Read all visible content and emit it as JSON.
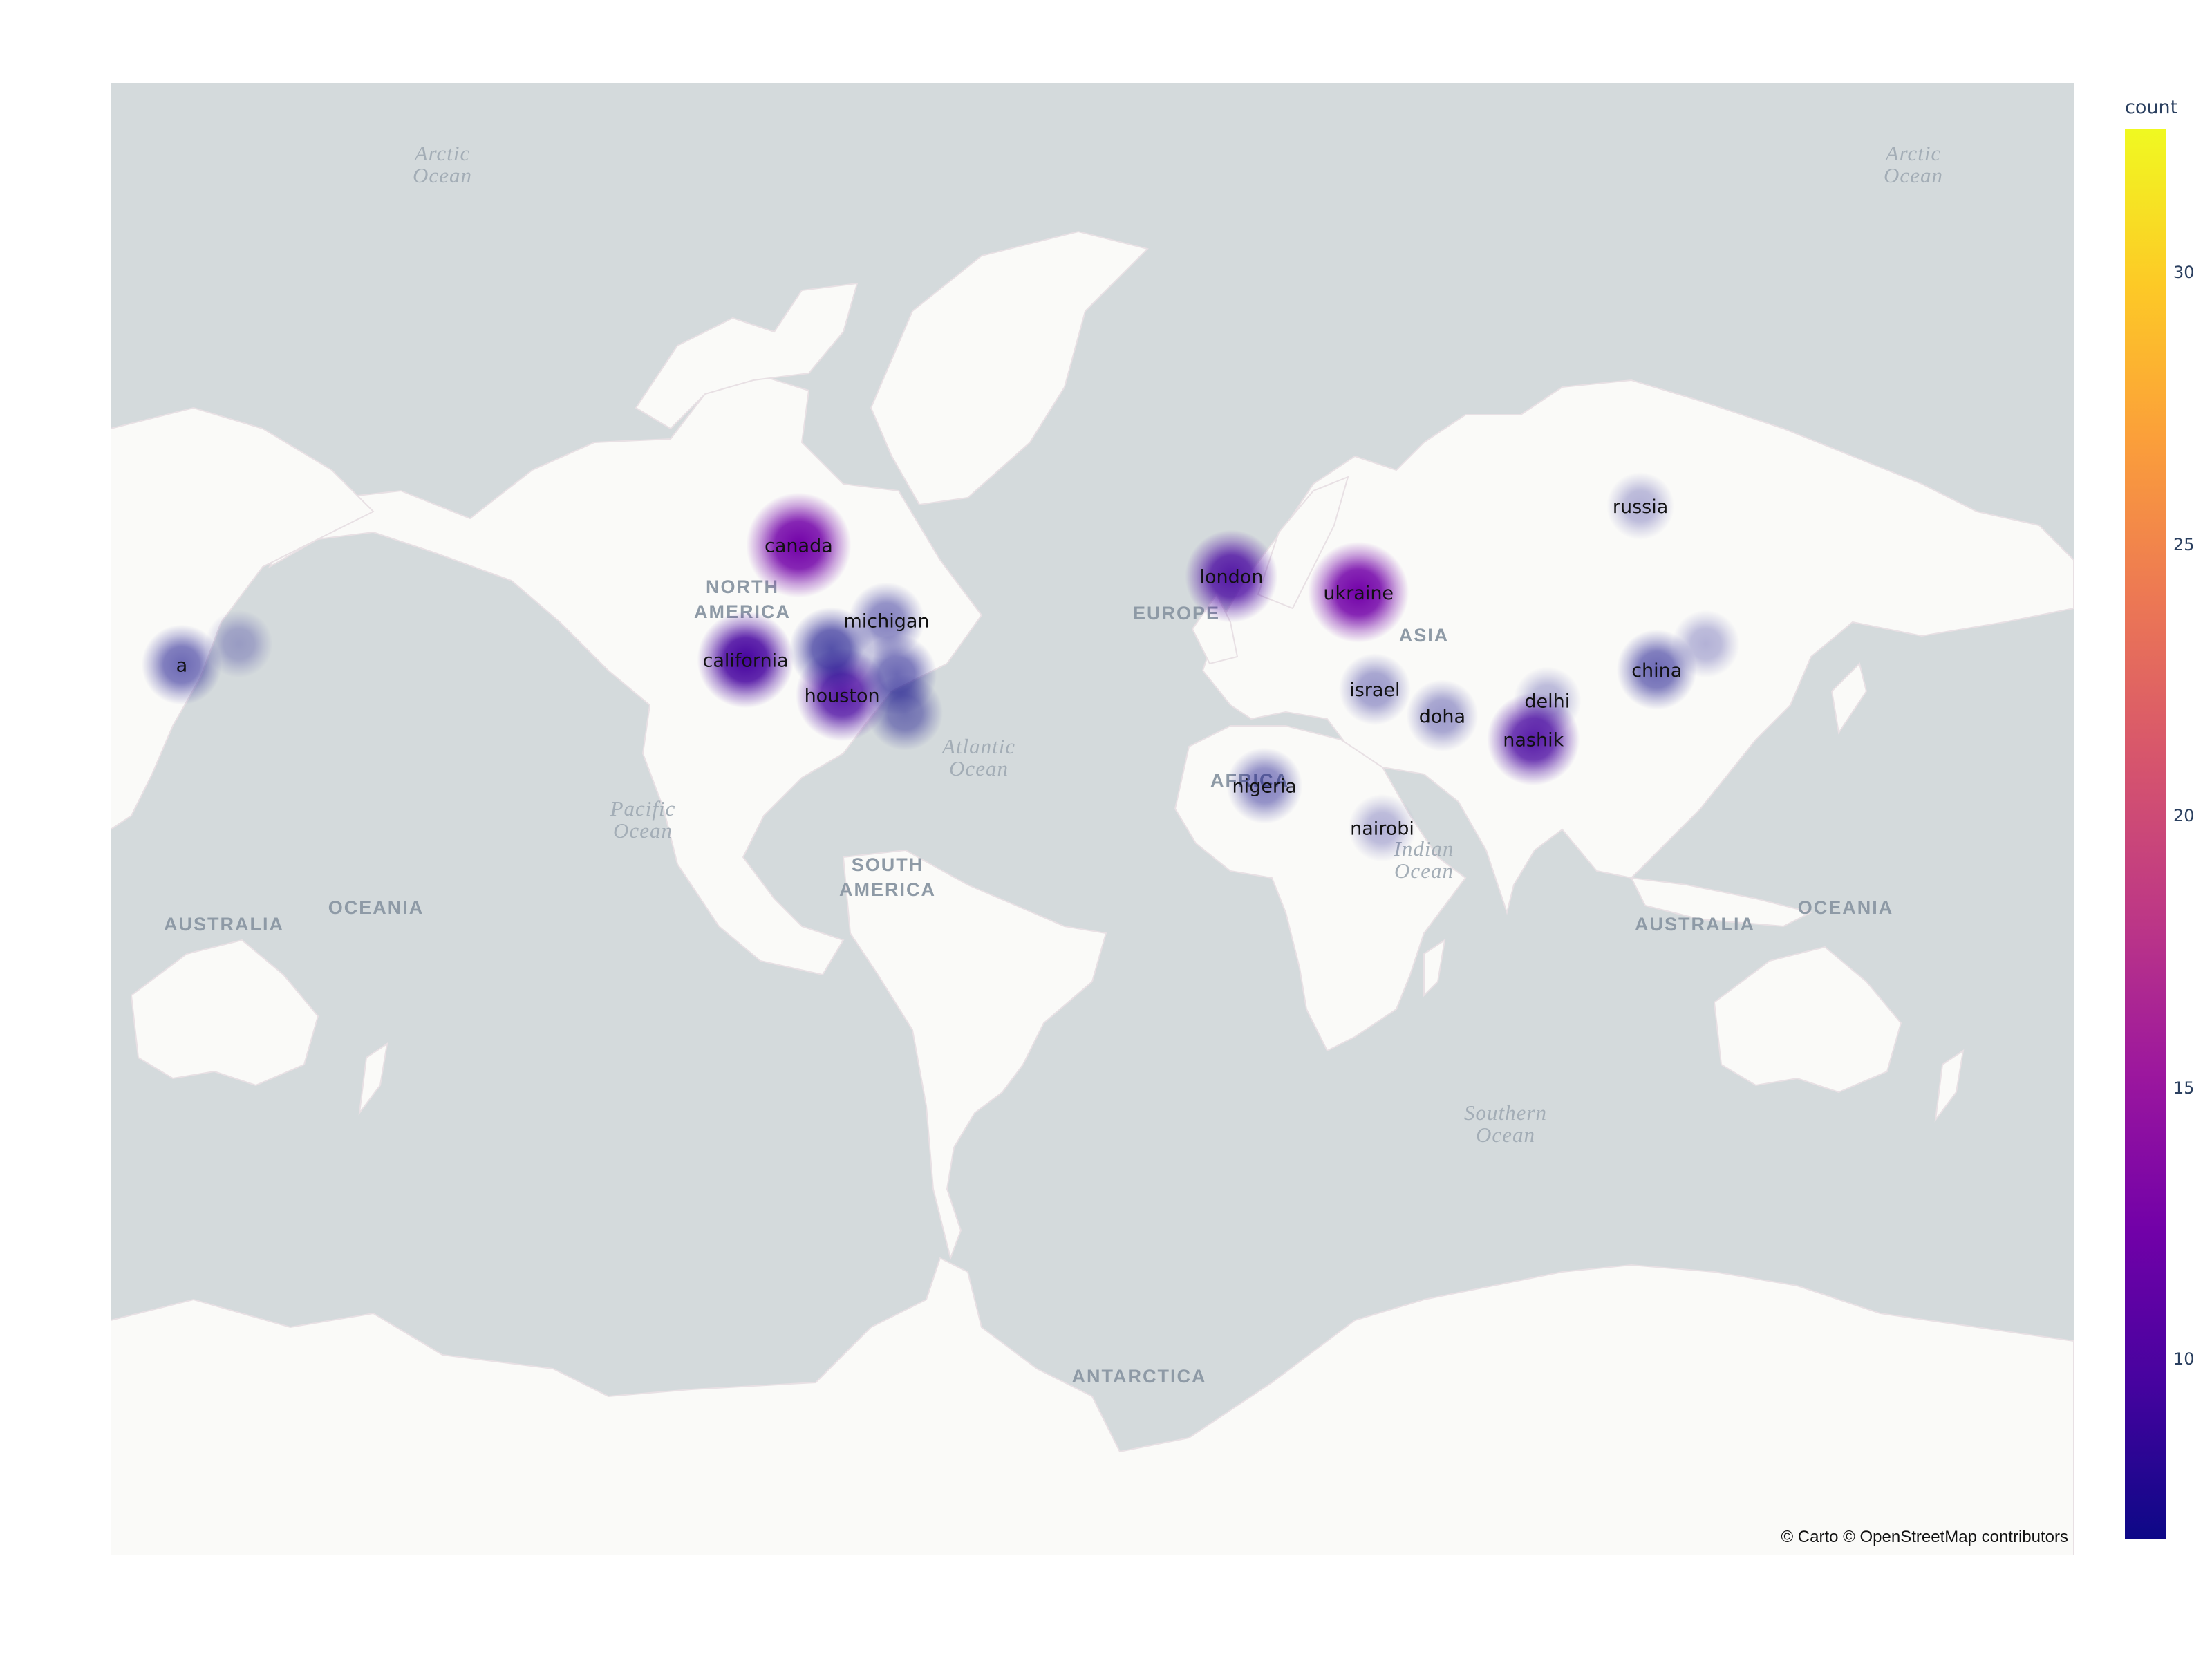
{
  "map": {
    "attribution": "© Carto © OpenStreetMap contributors",
    "region_labels": [
      {
        "id": "north-america",
        "lines": [
          "NORTH",
          "AMERICA"
        ]
      },
      {
        "id": "south-america",
        "lines": [
          "SOUTH",
          "AMERICA"
        ]
      },
      {
        "id": "europe",
        "lines": [
          "EUROPE"
        ]
      },
      {
        "id": "asia",
        "lines": [
          "ASIA"
        ]
      },
      {
        "id": "africa",
        "lines": [
          "AFRICA"
        ]
      },
      {
        "id": "australia-left",
        "lines": [
          "AUSTRALIA"
        ]
      },
      {
        "id": "australia-right",
        "lines": [
          "AUSTRALIA"
        ]
      },
      {
        "id": "oceania-left",
        "lines": [
          "OCEANIA"
        ]
      },
      {
        "id": "oceania-right",
        "lines": [
          "OCEANIA"
        ]
      },
      {
        "id": "antarctica",
        "lines": [
          "ANTARCTICA"
        ]
      }
    ],
    "ocean_labels": [
      {
        "id": "arctic-left",
        "lines": [
          "Arctic",
          "Ocean"
        ]
      },
      {
        "id": "arctic-right",
        "lines": [
          "Arctic",
          "Ocean"
        ]
      },
      {
        "id": "pacific",
        "lines": [
          "Pacific",
          "Ocean"
        ]
      },
      {
        "id": "atlantic",
        "lines": [
          "Atlantic",
          "Ocean"
        ]
      },
      {
        "id": "indian",
        "lines": [
          "Indian",
          "Ocean"
        ]
      },
      {
        "id": "southern",
        "lines": [
          "Southern",
          "Ocean"
        ]
      }
    ]
  },
  "heat_points": [
    {
      "label": "canada",
      "lon": -106,
      "lat": 56,
      "count": 12
    },
    {
      "label": "california",
      "lon": -119,
      "lat": 37,
      "count": 10
    },
    {
      "label": "houston",
      "lon": -95.4,
      "lat": 29.8,
      "count": 9
    },
    {
      "label": "michigan",
      "lon": -84.5,
      "lat": 44.3,
      "count": 5
    },
    {
      "label": "",
      "lon": -98,
      "lat": 39,
      "count": 7
    },
    {
      "label": "",
      "lon": -82,
      "lat": 34,
      "count": 6
    },
    {
      "label": "",
      "lon": -80,
      "lat": 26,
      "count": 5
    },
    {
      "label": "london",
      "lon": -0.1,
      "lat": 51.5,
      "count": 9
    },
    {
      "label": "ukraine",
      "lon": 31,
      "lat": 49,
      "count": 11
    },
    {
      "label": "russia",
      "lon": 100,
      "lat": 61,
      "count": 3
    },
    {
      "label": "china",
      "lon": 104,
      "lat": 35,
      "count": 6
    },
    {
      "label": "israel",
      "lon": 35,
      "lat": 31,
      "count": 4
    },
    {
      "label": "doha",
      "lon": 51.5,
      "lat": 25.3,
      "count": 4
    },
    {
      "label": "delhi",
      "lon": 77.2,
      "lat": 28.6,
      "count": 3
    },
    {
      "label": "nashik",
      "lon": 73.8,
      "lat": 20,
      "count": 9
    },
    {
      "label": "nigeria",
      "lon": 8,
      "lat": 9,
      "count": 5
    },
    {
      "label": "nairobi",
      "lon": 36.8,
      "lat": -1.3,
      "count": 3
    },
    {
      "label": "",
      "lon": 116,
      "lat": 40,
      "count": 3
    },
    {
      "label": "",
      "lon": -243,
      "lat": 40,
      "count": 3
    },
    {
      "label": "a",
      "lon": -257,
      "lat": 36,
      "count": 6
    }
  ],
  "colorbar": {
    "title": "count",
    "ticks": [
      "10",
      "15",
      "20",
      "25",
      "30"
    ]
  }
}
